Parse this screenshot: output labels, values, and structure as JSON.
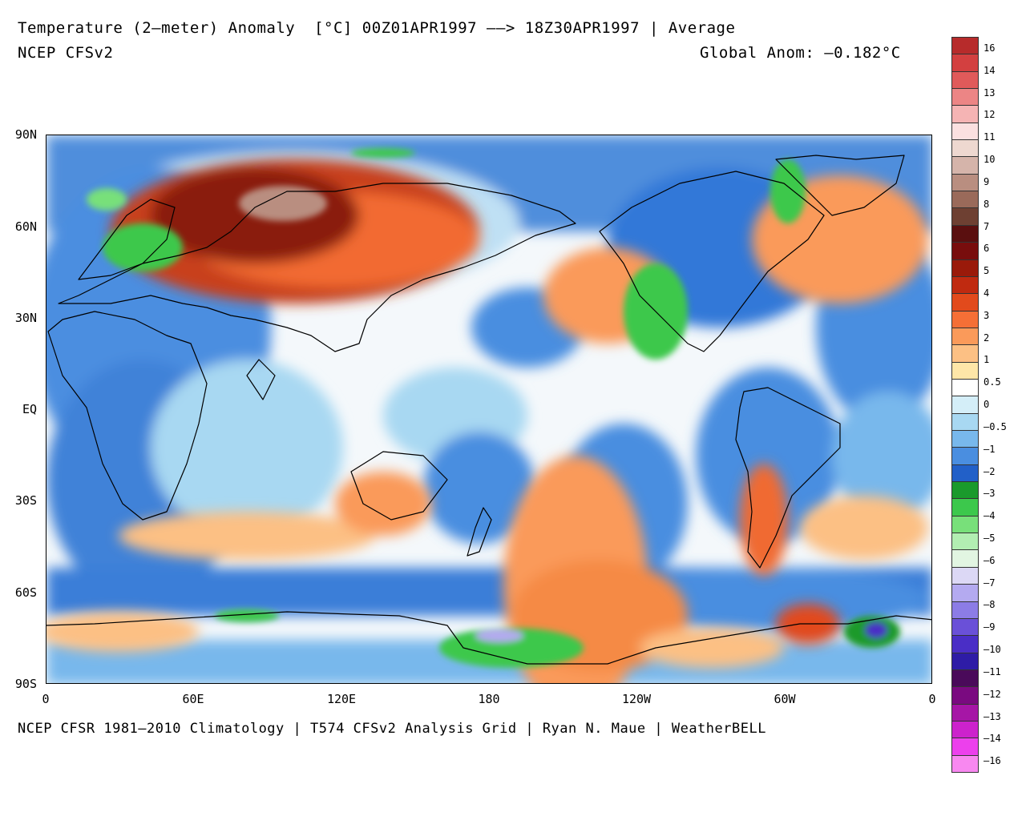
{
  "header": {
    "title": "Temperature (2–meter) Anomaly  [°C] 00Z01APR1997 ––> 18Z30APR1997 | Average",
    "model": "NCEP CFSv2",
    "global_anom": "Global Anom: –0.182°C"
  },
  "footer": {
    "credit": "NCEP CFSR 1981–2010 Climatology | T574 CFSv2 Analysis Grid | Ryan N. Maue | WeatherBELL"
  },
  "axes": {
    "lat_labels": [
      "90N",
      "60N",
      "30N",
      "EQ",
      "30S",
      "60S",
      "90S"
    ],
    "lon_labels": [
      "0",
      "60E",
      "120E",
      "180",
      "120W",
      "60W",
      "0"
    ]
  },
  "colorbar": {
    "labels": [
      "16",
      "14",
      "13",
      "12",
      "11",
      "10",
      "9",
      "8",
      "7",
      "6",
      "5",
      "4",
      "3",
      "2",
      "1",
      "0.5",
      "0",
      "–0.5",
      "–1",
      "–2",
      "–3",
      "–4",
      "–5",
      "–6",
      "–7",
      "–8",
      "–9",
      "–10",
      "–11",
      "–12",
      "–13",
      "–14",
      "–16"
    ],
    "colors": [
      "#b72b2b",
      "#d34040",
      "#e05a5a",
      "#ec8585",
      "#f5b4b4",
      "#fbe0e0",
      "#eed8d0",
      "#d5b4aa",
      "#b98e80",
      "#9a6a5a",
      "#6e4032",
      "#5a0f0f",
      "#780d0d",
      "#9a1a0a",
      "#c02a10",
      "#e24a1c",
      "#f56f36",
      "#fa9a5a",
      "#fcc084",
      "#fee6a8",
      "#ffffff",
      "#d4eef8",
      "#a8d8f2",
      "#78b8ec",
      "#4a8ee0",
      "#2260c8",
      "#1a9a2c",
      "#3cc84c",
      "#78e07a",
      "#b2eeb2",
      "#e2f5e2",
      "#dcd8f5",
      "#b4aaf0",
      "#8c7ce6",
      "#6a50d8",
      "#4a2ec6",
      "#2e1ca6",
      "#4a0a5a",
      "#7a0a80",
      "#a616a6",
      "#cc22cc",
      "#ec40ec",
      "#f888f0"
    ]
  }
}
